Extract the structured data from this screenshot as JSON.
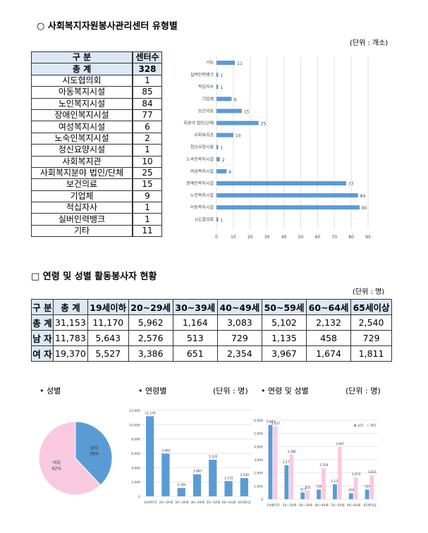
{
  "section1": {
    "title": "○ 사회복지자원봉사관리센터 유형별",
    "unit": "(단위 : 개소)",
    "headers": [
      "구   분",
      "센터수"
    ],
    "rows": [
      [
        "총   계",
        "328"
      ],
      [
        "시도협의회",
        "1"
      ],
      [
        "아동복지시설",
        "85"
      ],
      [
        "노인복지시설",
        "84"
      ],
      [
        "장애인복지시설",
        "77"
      ],
      [
        "여성복지시설",
        "6"
      ],
      [
        "노숙인복지시설",
        "2"
      ],
      [
        "정신요양시설",
        "1"
      ],
      [
        "사회복지관",
        "10"
      ],
      [
        "사회복지분야 법인/단체",
        "25"
      ],
      [
        "보건의료",
        "15"
      ],
      [
        "기업체",
        "9"
      ],
      [
        "적십자사",
        "1"
      ],
      [
        "실버인력뱅크",
        "1"
      ],
      [
        "기타",
        "11"
      ]
    ]
  },
  "section2": {
    "title": "□ 연령 및 성별 활동봉사자 현황",
    "unit": "(단위 : 명)",
    "headers": [
      "구 분",
      "총 계",
      "19세이하",
      "20~29세",
      "30~39세",
      "40~49세",
      "50~59세",
      "60~64세",
      "65세이상"
    ],
    "rows": [
      [
        "총 계",
        "31,153",
        "11,170",
        "5,962",
        "1,164",
        "3,083",
        "5,102",
        "2,132",
        "2,540"
      ],
      [
        "남 자",
        "11,783",
        "5,643",
        "2,576",
        "513",
        "729",
        "1,135",
        "458",
        "729"
      ],
      [
        "여 자",
        "19,370",
        "5,527",
        "3,386",
        "651",
        "2,354",
        "3,967",
        "1,674",
        "1,811"
      ]
    ]
  },
  "bottom": {
    "gender_label": "• 성별",
    "age_label": "• 연령별",
    "age_unit": "(단위 : 명)",
    "agegender_label": "• 연령 및 성별",
    "agegender_unit": "(단위 : 명)"
  },
  "chart_data": [
    {
      "type": "bar",
      "orientation": "horizontal",
      "categories": [
        "기타",
        "실버인력뱅크",
        "적십자사",
        "기업체",
        "보건의료",
        "사회복지분야 법인/단체",
        "사회복지관",
        "정신요양시설",
        "노숙인복지시설",
        "여성복지시설",
        "장애인복지시설",
        "노인복지시설",
        "아동복지시설",
        "시도협의회"
      ],
      "values": [
        11,
        1,
        1,
        9,
        15,
        25,
        10,
        1,
        2,
        6,
        77,
        84,
        85,
        1
      ],
      "xlim": [
        0,
        90
      ],
      "ticks": [
        0,
        10,
        20,
        30,
        40,
        50,
        60,
        70,
        80,
        90
      ],
      "grid": true,
      "color": "#5b9bd5"
    },
    {
      "type": "pie",
      "labels": [
        "남자",
        "여자"
      ],
      "values": [
        38,
        62
      ],
      "value_labels": [
        "38%",
        "62%"
      ],
      "colors": [
        "#5b9bd5",
        "#f9c9e0"
      ]
    },
    {
      "type": "bar",
      "categories": [
        "19세이하",
        "20~29세",
        "30~39세",
        "40~49세",
        "50~59세",
        "60~64세",
        "65세이상"
      ],
      "values": [
        11170,
        5962,
        1164,
        3083,
        5102,
        2132,
        2540
      ],
      "value_labels": [
        "11,170",
        "5,962",
        "1,164",
        "3,083",
        "5,102",
        "2,132",
        "2,540"
      ],
      "ylim": [
        0,
        12000
      ],
      "ticks": [
        "0",
        "2,000",
        "4,000",
        "6,000",
        "8,000",
        "10,000",
        "12,000"
      ],
      "grid": true,
      "color": "#5b9bd5"
    },
    {
      "type": "bar",
      "categories": [
        "19세이하",
        "20~29세",
        "30~39세",
        "40~49세",
        "50~59세",
        "60~64세",
        "65세이상"
      ],
      "series": [
        {
          "name": "남자",
          "values": [
            5643,
            2576,
            513,
            729,
            1135,
            458,
            729
          ],
          "labels": [
            "5,643",
            "2,576",
            "513",
            "729",
            "1,135",
            "458",
            "729"
          ],
          "color": "#5b9bd5"
        },
        {
          "name": "여자",
          "values": [
            5527,
            3386,
            651,
            2354,
            3967,
            1674,
            1811
          ],
          "labels": [
            "5,527",
            "3,386",
            "651",
            "2,354",
            "3,967",
            "1,674",
            "1,811"
          ],
          "color": "#f9c9e0"
        }
      ],
      "ylim": [
        0,
        6000
      ],
      "ticks": [
        "0",
        "1,000",
        "2,000",
        "3,000",
        "4,000",
        "5,000",
        "6,000"
      ],
      "grid": true,
      "legend": "top-right"
    }
  ]
}
